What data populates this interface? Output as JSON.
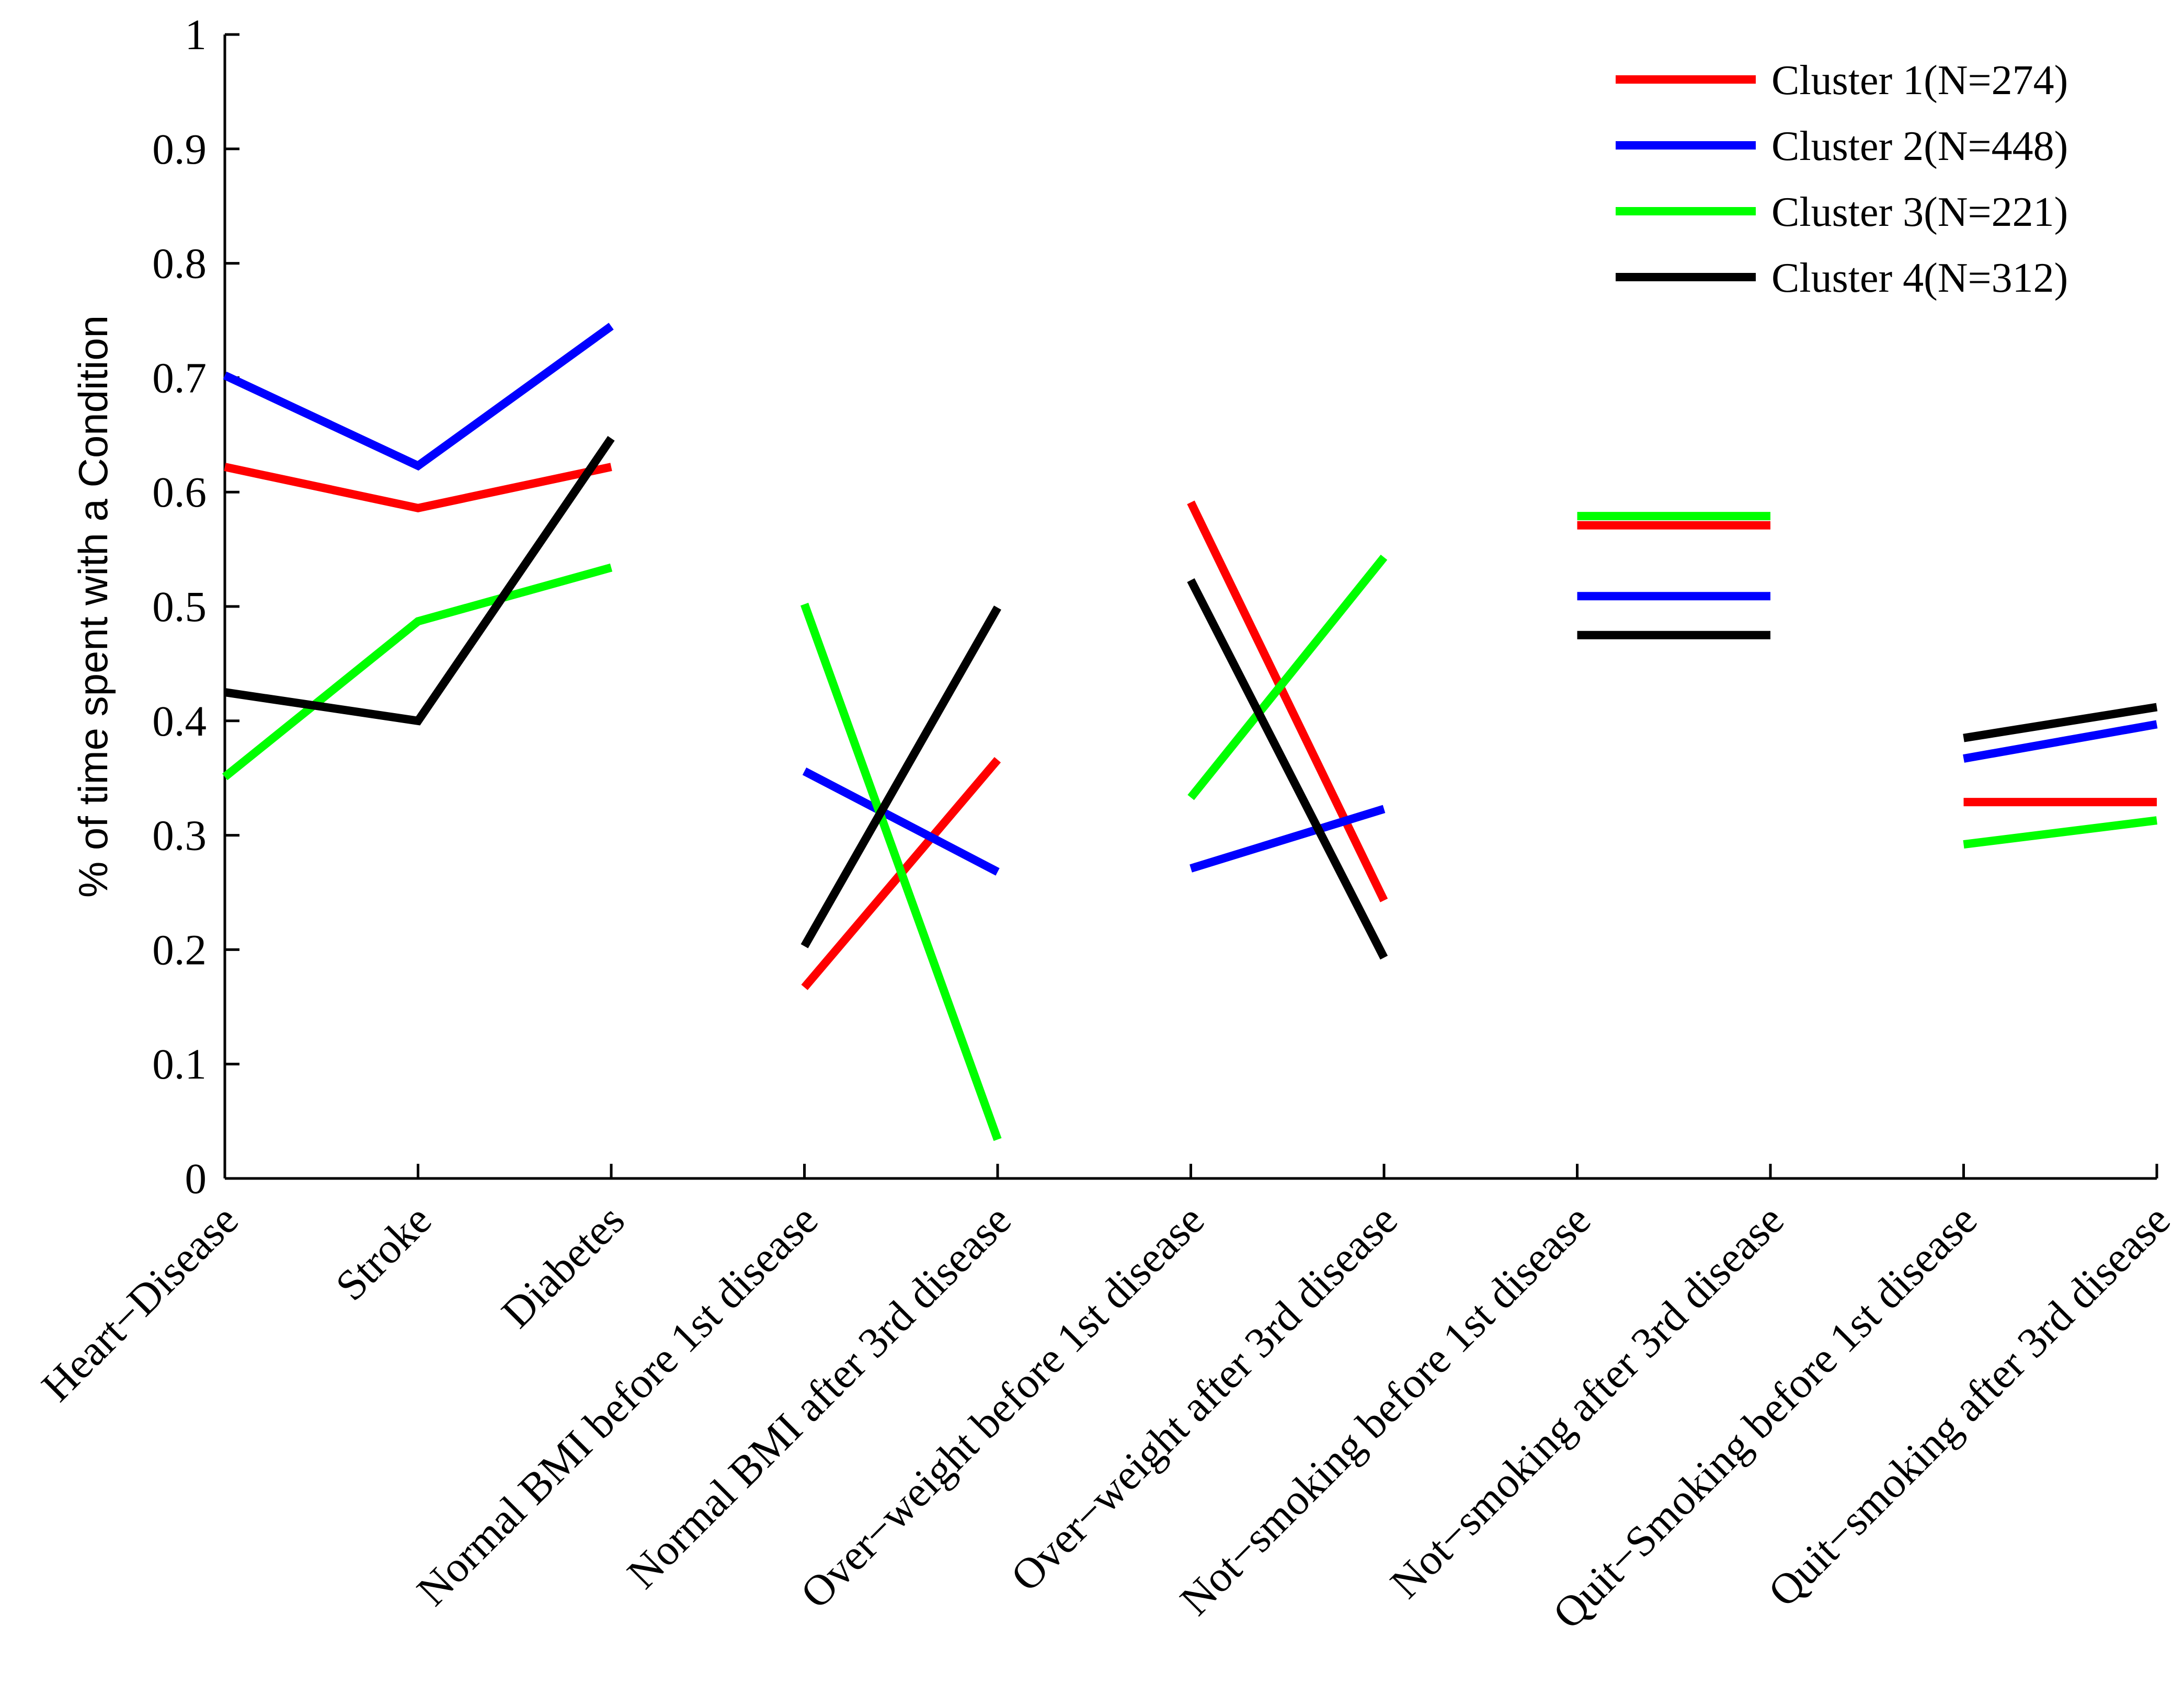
{
  "chart_data": {
    "type": "line",
    "title": "",
    "xlabel": "",
    "ylabel": "% of time spent with a Condition",
    "ylim": [
      0,
      1
    ],
    "yticks": [
      "0",
      "0.1",
      "0.2",
      "0.3",
      "0.4",
      "0.5",
      "0.6",
      "0.7",
      "0.8",
      "0.9",
      "1"
    ],
    "grid": false,
    "legend_position": "top-right",
    "categories": [
      "Heart−Disease",
      "Stroke",
      "Diabetes",
      "Normal BMI before 1st disease",
      "Normal BMI after 3rd disease",
      "Over−weight before 1st disease",
      "Over−weight after 3rd disease",
      "Not−smoking before 1st disease",
      "Not−smoking after 3rd disease",
      "Quit−Smoking before 1st disease",
      "Quit−smoking after 3rd disease"
    ],
    "segments": [
      [
        0,
        1,
        2
      ],
      [
        3,
        4
      ],
      [
        5,
        6
      ],
      [
        7,
        8
      ],
      [
        9,
        10
      ]
    ],
    "series": [
      {
        "name": "Cluster 1(N=274)",
        "color": "#ff0000",
        "values": [
          0.622,
          0.586,
          0.622,
          0.167,
          0.366,
          0.591,
          0.243,
          0.571,
          0.571,
          0.329,
          0.329
        ]
      },
      {
        "name": "Cluster 2(N=448)",
        "color": "#0000ff",
        "values": [
          0.702,
          0.623,
          0.745,
          0.356,
          0.268,
          0.271,
          0.323,
          0.509,
          0.509,
          0.367,
          0.397
        ]
      },
      {
        "name": "Cluster 3(N=221)",
        "color": "#00ff00",
        "values": [
          0.351,
          0.487,
          0.534,
          0.502,
          0.034,
          0.333,
          0.543,
          0.579,
          0.579,
          0.292,
          0.313
        ]
      },
      {
        "name": "Cluster 4(N=312)",
        "color": "#000000",
        "values": [
          0.425,
          0.4,
          0.647,
          0.203,
          0.499,
          0.523,
          0.193,
          0.475,
          0.475,
          0.385,
          0.412
        ]
      }
    ]
  }
}
